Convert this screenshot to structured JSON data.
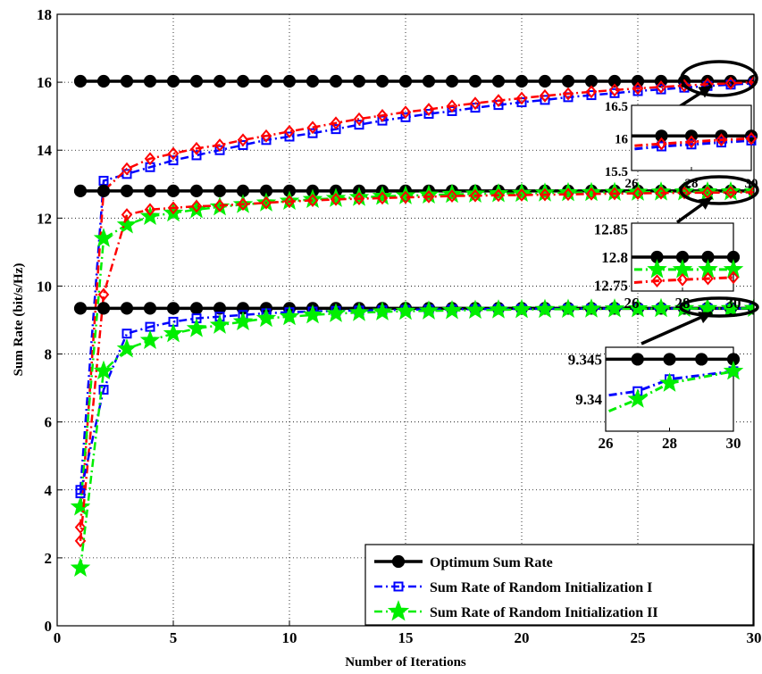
{
  "chart_data": {
    "type": "line",
    "title": "",
    "xlabel": "Number of Iterations",
    "ylabel": "Sum Rate (bit/s/Hz)",
    "xlim": [
      0,
      30
    ],
    "ylim": [
      0,
      18
    ],
    "xticks": [
      0,
      5,
      10,
      15,
      20,
      25,
      30
    ],
    "yticks": [
      0,
      2,
      4,
      6,
      8,
      10,
      12,
      14,
      16,
      18
    ],
    "grid": true,
    "legend_position": "bottom-right",
    "legend": [
      {
        "label": "Optimum Sum Rate",
        "color": "#000000",
        "marker": "circle",
        "dash": "solid"
      },
      {
        "label": "Sum Rate of Random Initialization I",
        "color": "#0000ff",
        "marker": "square",
        "dash": "dash-dot"
      },
      {
        "label": "Sum Rate of Random Initialization II",
        "color": "#00ee00",
        "marker": "star",
        "dash": "dash-dot"
      }
    ],
    "groups": [
      {
        "optimum": 16.03,
        "series": [
          {
            "color": "#0000ff",
            "marker": "square",
            "values": [
              4.0,
              13.1,
              13.3,
              13.5,
              13.7,
              13.85,
              14.0,
              14.15,
              14.3,
              14.4,
              14.5,
              14.62,
              14.75,
              14.87,
              14.97,
              15.07,
              15.15,
              15.25,
              15.33,
              15.41,
              15.48,
              15.56,
              15.62,
              15.68,
              15.74,
              15.79,
              15.84,
              15.89,
              15.93,
              15.97
            ]
          },
          {
            "color": "#ff0000",
            "marker": "diamond",
            "values": [
              2.9,
              12.8,
              13.45,
              13.75,
              13.9,
              14.05,
              14.15,
              14.3,
              14.42,
              14.55,
              14.67,
              14.8,
              14.92,
              15.02,
              15.12,
              15.2,
              15.3,
              15.38,
              15.46,
              15.53,
              15.6,
              15.66,
              15.72,
              15.77,
              15.82,
              15.86,
              15.9,
              15.94,
              15.97,
              16.0
            ]
          }
        ],
        "inset": {
          "ylim": [
            15.5,
            16.5
          ],
          "yticks": [
            15.5,
            16,
            16.5
          ],
          "xticks": [
            26,
            28,
            30
          ],
          "values": [
            [
              15.83,
              15.87,
              15.9,
              15.93,
              15.96
            ],
            [
              15.88,
              15.91,
              15.94,
              15.97,
              15.99
            ]
          ]
        }
      },
      {
        "optimum": 12.8,
        "series": [
          {
            "color": "#00ee00",
            "marker": "star",
            "values": [
              3.5,
              11.4,
              11.8,
              12.05,
              12.15,
              12.25,
              12.33,
              12.4,
              12.45,
              12.5,
              12.55,
              12.58,
              12.61,
              12.64,
              12.66,
              12.68,
              12.7,
              12.71,
              12.72,
              12.73,
              12.74,
              12.75,
              12.755,
              12.76,
              12.765,
              12.77,
              12.772,
              12.774,
              12.776,
              12.778
            ]
          },
          {
            "color": "#ff0000",
            "marker": "diamond",
            "values": [
              2.5,
              9.75,
              12.1,
              12.25,
              12.3,
              12.35,
              12.37,
              12.41,
              12.45,
              12.49,
              12.52,
              12.55,
              12.57,
              12.59,
              12.61,
              12.63,
              12.65,
              12.66,
              12.67,
              12.68,
              12.69,
              12.7,
              12.71,
              12.72,
              12.73,
              12.74,
              12.745,
              12.75,
              12.755,
              12.76
            ]
          }
        ],
        "inset": {
          "ylim": [
            12.74,
            12.86
          ],
          "yticks": [
            12.75,
            12.8,
            12.85
          ],
          "xticks": [
            26,
            28,
            30
          ],
          "values": [
            [
              12.778,
              12.778,
              12.778,
              12.778,
              12.778
            ],
            [
              12.755,
              12.758,
              12.76,
              12.762,
              12.764
            ]
          ]
        }
      },
      {
        "optimum": 9.345,
        "series": [
          {
            "color": "#0000ff",
            "marker": "square",
            "values": [
              3.9,
              6.95,
              8.6,
              8.8,
              8.95,
              9.05,
              9.1,
              9.15,
              9.2,
              9.23,
              9.25,
              9.27,
              9.28,
              9.29,
              9.3,
              9.31,
              9.315,
              9.32,
              9.325,
              9.33,
              9.332,
              9.334,
              9.336,
              9.337,
              9.338,
              9.339,
              9.3405,
              9.341,
              9.3425,
              9.3435
            ]
          },
          {
            "color": "#00ee00",
            "marker": "star",
            "values": [
              1.7,
              7.5,
              8.15,
              8.4,
              8.6,
              8.75,
              8.85,
              8.95,
              9.05,
              9.1,
              9.15,
              9.19,
              9.22,
              9.24,
              9.26,
              9.27,
              9.28,
              9.29,
              9.3,
              9.31,
              9.315,
              9.32,
              9.325,
              9.33,
              9.335,
              9.3385,
              9.34,
              9.341,
              9.342,
              9.3435
            ]
          }
        ],
        "inset": {
          "ylim": [
            9.336,
            9.3465
          ],
          "yticks": [
            9.34,
            9.345
          ],
          "xticks": [
            26,
            28,
            30
          ],
          "values": [
            [
              9.3405,
              9.341,
              9.3425,
              9.3435
            ],
            [
              9.3385,
              9.34,
              9.342,
              9.3435
            ]
          ]
        }
      }
    ]
  }
}
